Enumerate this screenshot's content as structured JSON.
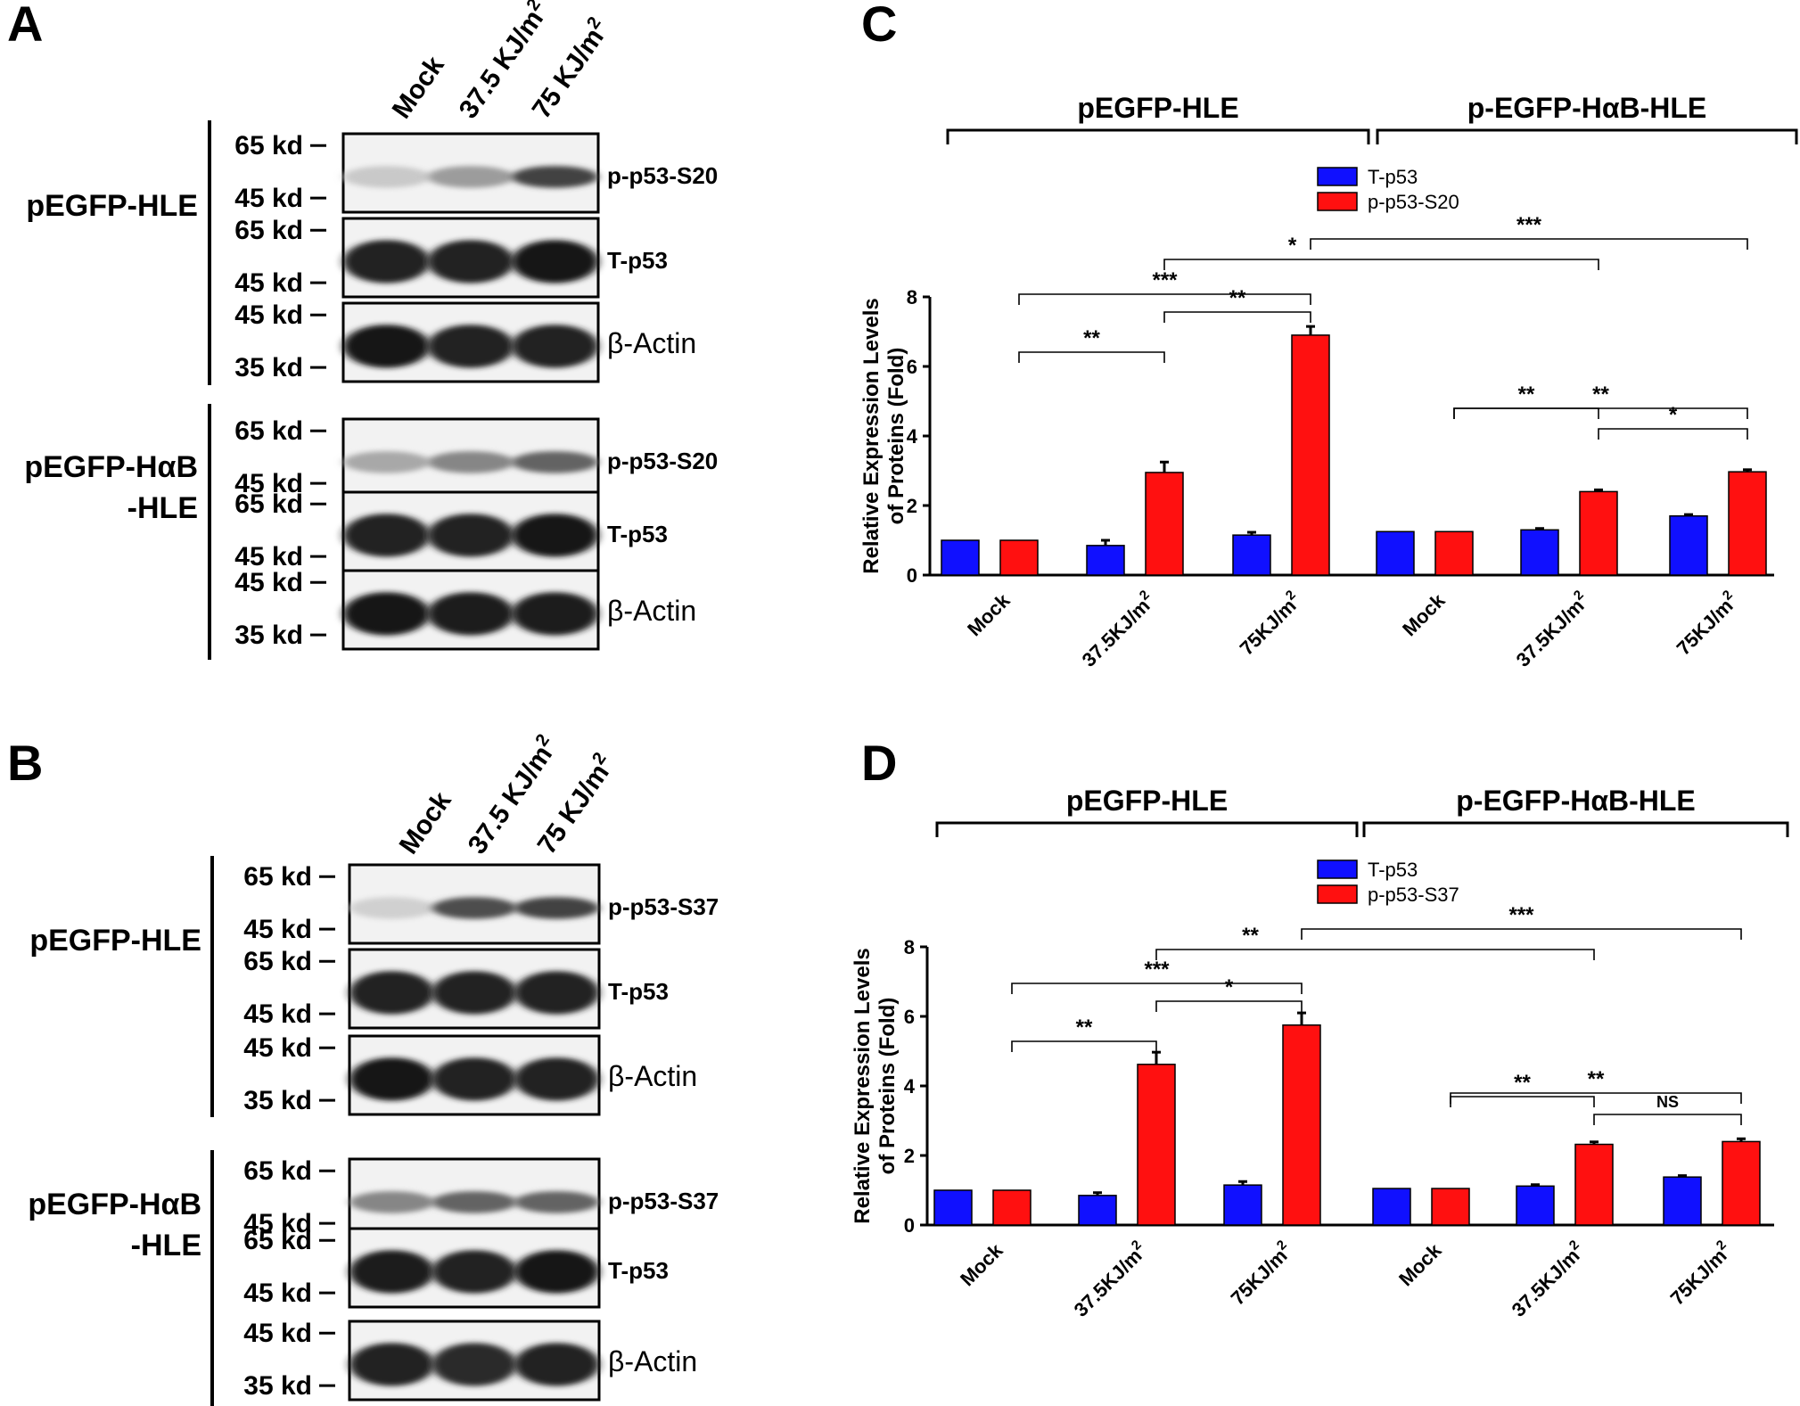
{
  "panel_letters": {
    "a": "A",
    "b": "B",
    "c": "C",
    "d": "D"
  },
  "panel_A": {
    "lanes": [
      "Mock",
      "37.5 KJ/m",
      "75 KJ/m"
    ],
    "lane_sup": "2",
    "groups": [
      {
        "title_lines": [
          "pEGFP-HLE"
        ],
        "blots": [
          {
            "label": "p-p53-S20",
            "markers": [
              "65 kd",
              "45 kd"
            ],
            "intensity": [
              0.15,
              0.35,
              0.75
            ]
          },
          {
            "label": "T-p53",
            "markers": [
              "65 kd",
              "45 kd"
            ],
            "intensity": [
              0.9,
              0.9,
              0.95
            ]
          },
          {
            "label": "β-Actin",
            "markers": [
              "45 kd",
              "35 kd"
            ],
            "intensity": [
              0.95,
              0.9,
              0.9
            ]
          }
        ]
      },
      {
        "title_lines": [
          "pEGFP-HαB",
          "-HLE"
        ],
        "blots": [
          {
            "label": "p-p53-S20",
            "markers": [
              "65 kd",
              "45 kd"
            ],
            "intensity": [
              0.3,
              0.45,
              0.6
            ]
          },
          {
            "label": "T-p53",
            "markers": [
              "65 kd",
              "45 kd"
            ],
            "intensity": [
              0.9,
              0.9,
              0.95
            ]
          },
          {
            "label": "β-Actin",
            "markers": [
              "45 kd",
              "35 kd"
            ],
            "intensity": [
              0.95,
              0.92,
              0.92
            ]
          }
        ]
      }
    ]
  },
  "panel_B": {
    "lanes": [
      "Mock",
      "37.5 KJ/m",
      "75 KJ/m"
    ],
    "lane_sup": "2",
    "groups": [
      {
        "title_lines": [
          "pEGFP-HLE"
        ],
        "blots": [
          {
            "label": "p-p53-S37",
            "markers": [
              "65 kd",
              "45 kd"
            ],
            "intensity": [
              0.12,
              0.7,
              0.75
            ]
          },
          {
            "label": "T-p53",
            "markers": [
              "65 kd",
              "45 kd"
            ],
            "intensity": [
              0.9,
              0.9,
              0.9
            ]
          },
          {
            "label": "β-Actin",
            "markers": [
              "45 kd",
              "35 kd"
            ],
            "intensity": [
              0.95,
              0.9,
              0.9
            ]
          }
        ]
      },
      {
        "title_lines": [
          "pEGFP-HαB",
          "-HLE"
        ],
        "blots": [
          {
            "label": "p-p53-S37",
            "markers": [
              "65 kd",
              "45 kd"
            ],
            "intensity": [
              0.45,
              0.6,
              0.6
            ]
          },
          {
            "label": "T-p53",
            "markers": [
              "65 kd",
              "45 kd"
            ],
            "intensity": [
              0.92,
              0.9,
              0.95
            ]
          },
          {
            "label": "β-Actin",
            "markers": [
              "45 kd",
              "35 kd"
            ],
            "intensity": [
              0.9,
              0.85,
              0.9
            ]
          }
        ]
      }
    ]
  },
  "chart_data": [
    {
      "type": "bar",
      "panel": "C",
      "group_labels": [
        "pEGFP-HLE",
        "p-EGFP-HαB-HLE"
      ],
      "categories": [
        "Mock",
        "37.5KJ/m",
        "75KJ/m",
        "Mock",
        "37.5KJ/m",
        "75KJ/m"
      ],
      "category_sup": [
        "",
        "2",
        "2",
        "",
        "2",
        "2"
      ],
      "series": [
        {
          "name": "T-p53",
          "color": "#1010ff",
          "values": [
            1.0,
            0.85,
            1.15,
            1.25,
            1.3,
            1.7
          ],
          "errors": [
            0,
            0.15,
            0.08,
            0,
            0.04,
            0.04
          ]
        },
        {
          "name": "p-p53-S20",
          "color": "#ff1010",
          "values": [
            1.0,
            2.95,
            6.9,
            1.25,
            2.4,
            2.97
          ],
          "errors": [
            0,
            0.3,
            0.25,
            0,
            0.05,
            0.06
          ]
        }
      ],
      "ylabel_lines": [
        "Relative Expression Levels",
        "of Proteins (Fold)"
      ],
      "ylim": [
        0,
        8
      ],
      "yticks": [
        "0",
        "2",
        "4",
        "6",
        "8"
      ],
      "significance": [
        {
          "label": "**",
          "from": [
            0,
            1
          ],
          "to": [
            1,
            1
          ]
        },
        {
          "label": "***",
          "from": [
            0,
            1
          ],
          "to": [
            2,
            1
          ]
        },
        {
          "label": "**",
          "from": [
            1,
            1
          ],
          "to": [
            2,
            1
          ]
        },
        {
          "label": "*",
          "from": [
            1,
            1
          ],
          "to": [
            4,
            1
          ]
        },
        {
          "label": "***",
          "from": [
            2,
            1
          ],
          "to": [
            5,
            1
          ]
        },
        {
          "label": "**",
          "from": [
            3,
            1
          ],
          "to": [
            4,
            1
          ]
        },
        {
          "label": "**",
          "from": [
            3,
            1
          ],
          "to": [
            5,
            1
          ]
        },
        {
          "label": "*",
          "from": [
            4,
            1
          ],
          "to": [
            5,
            1
          ]
        }
      ]
    },
    {
      "type": "bar",
      "panel": "D",
      "group_labels": [
        "pEGFP-HLE",
        "p-EGFP-HαB-HLE"
      ],
      "categories": [
        "Mock",
        "37.5KJ/m",
        "75KJ/m",
        "Mock",
        "37.5KJ/m",
        "75KJ/m"
      ],
      "category_sup": [
        "",
        "2",
        "2",
        "",
        "2",
        "2"
      ],
      "series": [
        {
          "name": "T-p53",
          "color": "#1010ff",
          "values": [
            1.0,
            0.85,
            1.15,
            1.05,
            1.12,
            1.38
          ],
          "errors": [
            0,
            0.08,
            0.1,
            0,
            0.04,
            0.04
          ]
        },
        {
          "name": "p-p53-S37",
          "color": "#ff1010",
          "values": [
            1.0,
            4.62,
            5.75,
            1.05,
            2.32,
            2.4
          ],
          "errors": [
            0,
            0.35,
            0.35,
            0,
            0.07,
            0.08
          ]
        }
      ],
      "ylabel_lines": [
        "Relative Expression Levels",
        "of Proteins (Fold)"
      ],
      "ylim": [
        0,
        8
      ],
      "yticks": [
        "0",
        "2",
        "4",
        "6",
        "8"
      ],
      "significance": [
        {
          "label": "**",
          "from": [
            0,
            1
          ],
          "to": [
            1,
            1
          ]
        },
        {
          "label": "***",
          "from": [
            0,
            1
          ],
          "to": [
            2,
            1
          ]
        },
        {
          "label": "*",
          "from": [
            1,
            1
          ],
          "to": [
            2,
            1
          ]
        },
        {
          "label": "**",
          "from": [
            1,
            1
          ],
          "to": [
            4,
            1
          ]
        },
        {
          "label": "***",
          "from": [
            2,
            1
          ],
          "to": [
            5,
            1
          ]
        },
        {
          "label": "**",
          "from": [
            3,
            1
          ],
          "to": [
            4,
            1
          ]
        },
        {
          "label": "**",
          "from": [
            3,
            1
          ],
          "to": [
            5,
            1
          ]
        },
        {
          "label": "NS",
          "from": [
            4,
            1
          ],
          "to": [
            5,
            1
          ]
        }
      ]
    }
  ]
}
